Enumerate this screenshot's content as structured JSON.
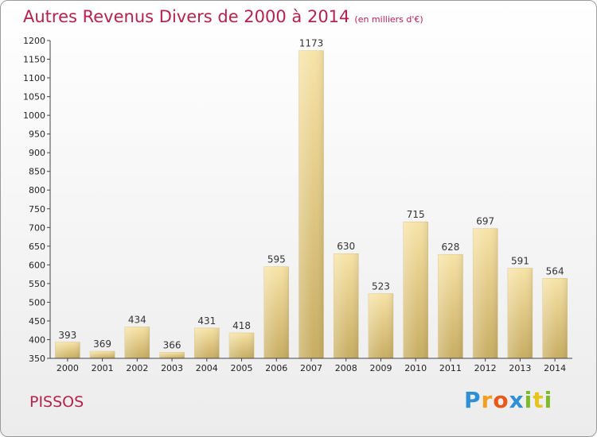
{
  "chart_data": {
    "type": "bar",
    "title": "Autres Revenus Divers de 2000 à 2014",
    "subtitle": "(en milliers d'€)",
    "categories": [
      "2000",
      "2001",
      "2002",
      "2003",
      "2004",
      "2005",
      "2006",
      "2007",
      "2008",
      "2009",
      "2010",
      "2011",
      "2012",
      "2013",
      "2014"
    ],
    "values": [
      393,
      369,
      434,
      366,
      431,
      418,
      595,
      1173,
      630,
      523,
      715,
      628,
      697,
      591,
      564
    ],
    "ylim": [
      350,
      1200
    ],
    "yticks": [
      350,
      400,
      450,
      500,
      550,
      600,
      650,
      700,
      750,
      800,
      850,
      900,
      950,
      1000,
      1050,
      1100,
      1150,
      1200
    ],
    "grid": false,
    "bar_color": "#e3c97f"
  },
  "footer": {
    "commune": "PISSOS",
    "logo": "Proxiti"
  }
}
